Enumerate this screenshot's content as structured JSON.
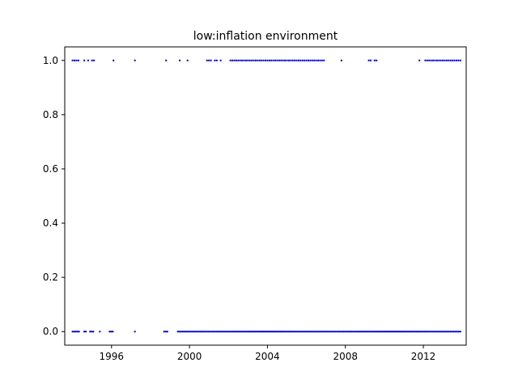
{
  "chart_data": {
    "type": "scatter",
    "title": "low:inflation environment",
    "xlabel": "",
    "ylabel": "",
    "xlim": [
      1993.6,
      2014.2
    ],
    "ylim": [
      -0.05,
      1.05
    ],
    "x_ticks": [
      {
        "value": 1996,
        "label": "1996"
      },
      {
        "value": 2000,
        "label": "2000"
      },
      {
        "value": 2004,
        "label": "2004"
      },
      {
        "value": 2008,
        "label": "2008"
      },
      {
        "value": 2012,
        "label": "2012"
      }
    ],
    "y_ticks": [
      {
        "value": 0.0,
        "label": "0.0"
      },
      {
        "value": 0.2,
        "label": "0.2"
      },
      {
        "value": 0.4,
        "label": "0.4"
      },
      {
        "value": 0.6,
        "label": "0.6"
      },
      {
        "value": 0.8,
        "label": "0.8"
      },
      {
        "value": 1.0,
        "label": "1.0"
      }
    ],
    "grid": false,
    "marker_color": "#0000cc",
    "series": [
      {
        "y_value": 1.0,
        "x_values": [
          1994.0,
          1994.1,
          1994.2,
          1994.3,
          1994.6,
          1994.8,
          1995.0,
          1995.1,
          1996.1,
          1997.2,
          1998.8,
          1999.5,
          1999.9,
          2000.9,
          2001.0,
          2001.1,
          2001.3,
          2001.4,
          2001.6,
          2002.1,
          2002.2,
          2002.3,
          2002.4,
          2002.5,
          2002.6,
          2002.7,
          2002.8,
          2002.9,
          2003.0,
          2003.1,
          2003.2,
          2003.3,
          2003.4,
          2003.5,
          2003.6,
          2003.7,
          2003.8,
          2003.9,
          2004.0,
          2004.1,
          2004.2,
          2004.3,
          2004.4,
          2004.5,
          2004.6,
          2004.7,
          2004.8,
          2004.9,
          2005.0,
          2005.1,
          2005.2,
          2005.3,
          2005.4,
          2005.5,
          2005.6,
          2005.7,
          2005.8,
          2005.9,
          2006.0,
          2006.1,
          2006.2,
          2006.3,
          2006.4,
          2006.5,
          2006.6,
          2006.7,
          2006.8,
          2006.9,
          2007.8,
          2009.2,
          2009.3,
          2009.5,
          2009.6,
          2011.8,
          2012.1,
          2012.2,
          2012.3,
          2012.4,
          2012.5,
          2012.6,
          2012.7,
          2012.8,
          2012.9,
          2013.0,
          2013.1,
          2013.2,
          2013.3,
          2013.4,
          2013.5,
          2013.6,
          2013.7,
          2013.8,
          2013.9
        ]
      },
      {
        "y_value": 0.0,
        "x_ranges": [
          [
            1994.0,
            1994.4
          ],
          [
            1994.6,
            1994.7
          ],
          [
            1994.9,
            1995.1
          ],
          [
            1995.4,
            1995.4
          ],
          [
            1995.9,
            1996.1
          ],
          [
            1997.2,
            1997.2
          ],
          [
            1998.7,
            1998.9
          ],
          [
            1999.4,
            2013.9
          ]
        ]
      }
    ]
  }
}
